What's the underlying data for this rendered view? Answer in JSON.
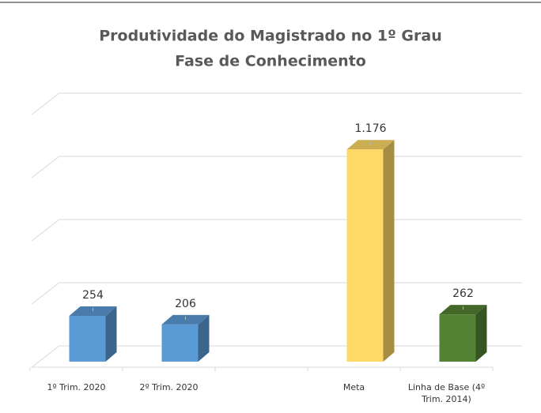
{
  "chart_data": {
    "type": "bar3d",
    "title": "Produtividade do Magistrado no 1º Grau",
    "subtitle": "Fase de Conhecimento",
    "categories": [
      "1º Trim. 2020",
      "2º Trim. 2020",
      null,
      "Meta",
      "Linha de Base (4º Trim. 2014)"
    ],
    "values": [
      254,
      206,
      null,
      1176,
      262
    ],
    "value_labels": [
      "254",
      "206",
      null,
      "1.176",
      "262"
    ],
    "colors": [
      "#5b9bd5",
      "#5b9bd5",
      null,
      "#ffd966",
      "#548235"
    ],
    "ylim": [
      0,
      1400
    ],
    "yticks": [
      0,
      350,
      700,
      1050,
      1400
    ],
    "grid": true
  }
}
